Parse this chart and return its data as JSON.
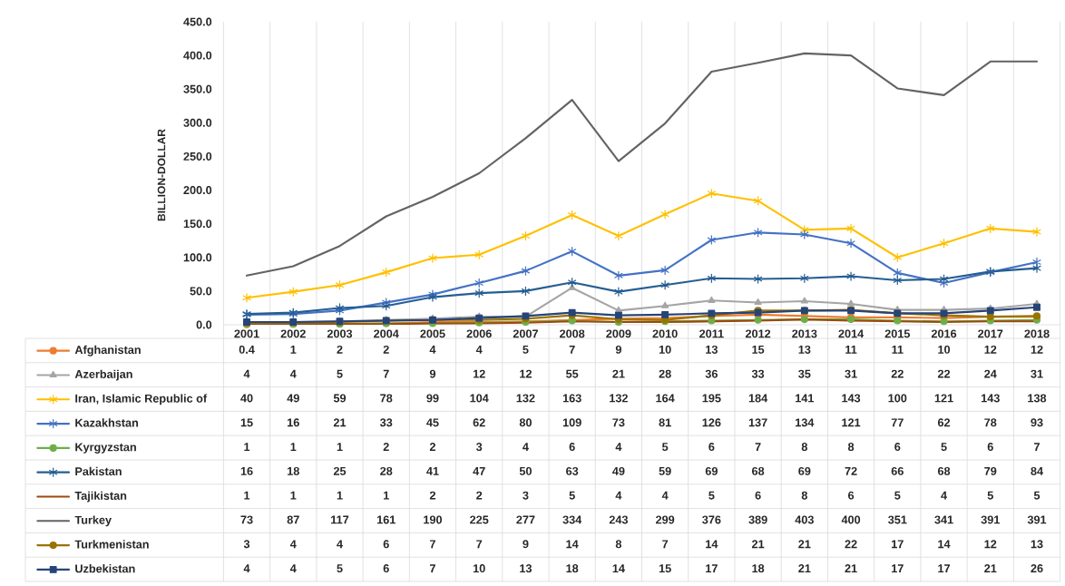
{
  "chart_data": {
    "type": "line",
    "ylabel": "BILLION-DOLLAR",
    "categories": [
      "2001",
      "2002",
      "2003",
      "2004",
      "2005",
      "2006",
      "2007",
      "2008",
      "2009",
      "2010",
      "2011",
      "2012",
      "2013",
      "2014",
      "2015",
      "2016",
      "2017",
      "2018"
    ],
    "ylim": [
      0,
      450
    ],
    "yticks": [
      {
        "value": 0,
        "label": "0.0"
      },
      {
        "value": 50,
        "label": "50.0"
      },
      {
        "value": 100,
        "label": "100.0"
      },
      {
        "value": 150,
        "label": "150.0"
      },
      {
        "value": 200,
        "label": "200.0"
      },
      {
        "value": 250,
        "label": "250.0"
      },
      {
        "value": 300,
        "label": "300.0"
      },
      {
        "value": 350,
        "label": "350.0"
      },
      {
        "value": 400,
        "label": "400.0"
      },
      {
        "value": 450,
        "label": "450.0"
      }
    ],
    "grid": "x",
    "legend": "bottom",
    "data_labels": true,
    "series": [
      {
        "name": "Afghanistan",
        "color": "#ed7d31",
        "marker": "circle",
        "values": [
          0.4,
          1,
          2,
          2,
          4,
          4,
          5,
          7,
          9,
          10,
          13,
          15,
          13,
          11,
          11,
          10,
          12,
          12
        ]
      },
      {
        "name": "Azerbaijan",
        "color": "#a5a5a5",
        "marker": "triangle",
        "values": [
          4,
          4,
          5,
          7,
          9,
          12,
          12,
          55,
          21,
          28,
          36,
          33,
          35,
          31,
          22,
          22,
          24,
          31
        ]
      },
      {
        "name": "Iran, Islamic Republic of",
        "color": "#ffc000",
        "marker": "cross",
        "values": [
          40,
          49,
          59,
          78,
          99,
          104,
          132,
          163,
          132,
          164,
          195,
          184,
          141,
          143,
          100,
          121,
          143,
          138
        ]
      },
      {
        "name": "Kazakhstan",
        "color": "#4472c4",
        "marker": "cross",
        "values": [
          15,
          16,
          21,
          33,
          45,
          62,
          80,
          109,
          73,
          81,
          126,
          137,
          134,
          121,
          77,
          62,
          78,
          93
        ]
      },
      {
        "name": "Kyrgyzstan",
        "color": "#70ad47",
        "marker": "circle",
        "values": [
          1,
          1,
          1,
          2,
          2,
          3,
          4,
          6,
          4,
          5,
          6,
          7,
          8,
          8,
          6,
          5,
          6,
          7
        ]
      },
      {
        "name": "Pakistan",
        "color": "#255e91",
        "marker": "cross",
        "values": [
          16,
          18,
          25,
          28,
          41,
          47,
          50,
          63,
          49,
          59,
          69,
          68,
          69,
          72,
          66,
          68,
          79,
          84
        ]
      },
      {
        "name": "Tajikistan",
        "color": "#9e480e",
        "marker": "none",
        "values": [
          1,
          1,
          1,
          1,
          2,
          2,
          3,
          5,
          4,
          4,
          5,
          6,
          8,
          6,
          5,
          4,
          5,
          5
        ]
      },
      {
        "name": "Turkey",
        "color": "#636363",
        "marker": "none",
        "values": [
          73,
          87,
          117,
          161,
          190,
          225,
          277,
          334,
          243,
          299,
          376,
          389,
          403,
          400,
          351,
          341,
          391,
          391
        ]
      },
      {
        "name": "Turkmenistan",
        "color": "#997300",
        "marker": "circle",
        "values": [
          3,
          4,
          4,
          6,
          7,
          7,
          9,
          14,
          8,
          7,
          14,
          21,
          21,
          22,
          17,
          14,
          12,
          13
        ]
      },
      {
        "name": "Uzbekistan",
        "color": "#264478",
        "marker": "square",
        "values": [
          4,
          4,
          5,
          6,
          7,
          10,
          13,
          18,
          14,
          15,
          17,
          18,
          21,
          21,
          17,
          17,
          21,
          26
        ]
      }
    ]
  }
}
